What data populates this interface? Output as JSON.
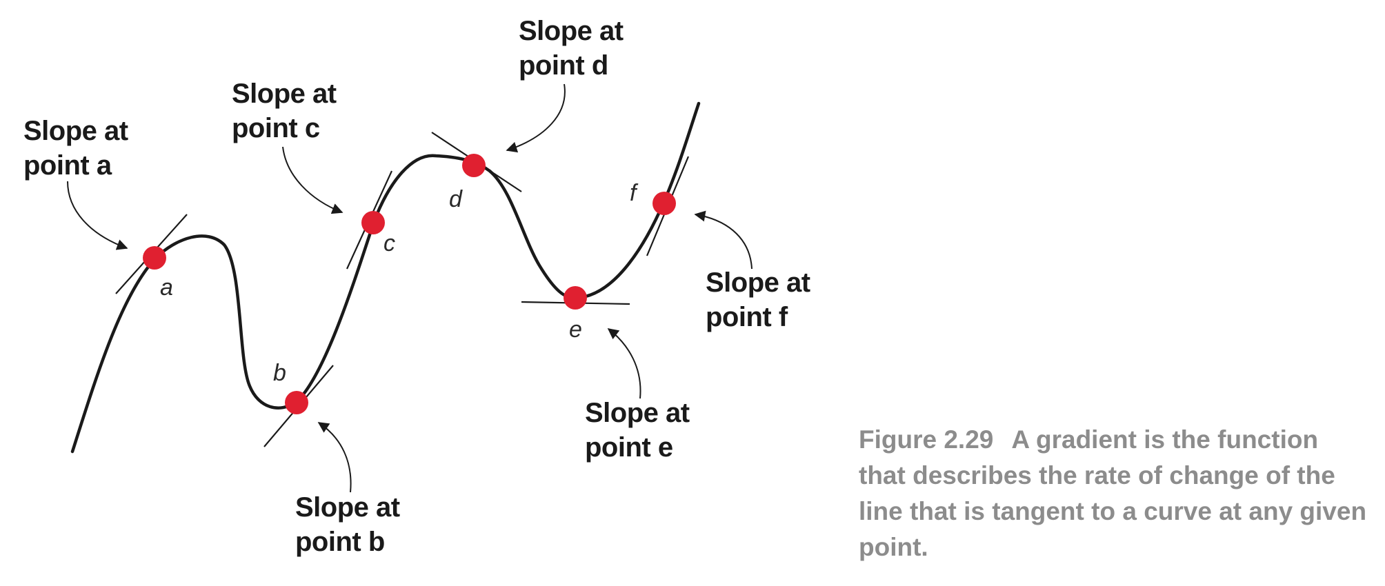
{
  "diagram": {
    "points": [
      {
        "id": "a",
        "label": "a",
        "callout_line1": "Slope at",
        "callout_line2": "point a"
      },
      {
        "id": "b",
        "label": "b",
        "callout_line1": "Slope at",
        "callout_line2": "point b"
      },
      {
        "id": "c",
        "label": "c",
        "callout_line1": "Slope at",
        "callout_line2": "point c"
      },
      {
        "id": "d",
        "label": "d",
        "callout_line1": "Slope at",
        "callout_line2": "point d"
      },
      {
        "id": "e",
        "label": "e",
        "callout_line1": "Slope at",
        "callout_line2": "point e"
      },
      {
        "id": "f",
        "label": "f",
        "callout_line1": "Slope at",
        "callout_line2": "point f"
      }
    ],
    "colors": {
      "point": "#e02030",
      "line": "#1a1a1a",
      "caption": "#8c8c8c"
    }
  },
  "caption": {
    "figure_number": "Figure 2.29",
    "text": "A gradient is the function that describes the rate of change of the line that is tangent to a curve at any given point."
  }
}
